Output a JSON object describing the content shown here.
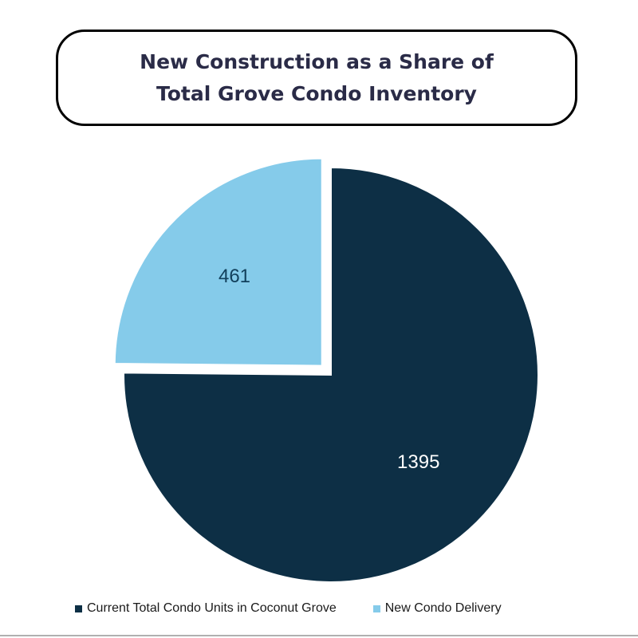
{
  "title_lines": [
    "New Construction as a Share of",
    "Total Grove Condo Inventory"
  ],
  "chart_data": {
    "type": "pie",
    "title": "New Construction as a Share of Total Grove Condo Inventory",
    "slices": [
      {
        "label": "Current Total Condo Units in Coconut Grove",
        "value": 1395,
        "color": "#0d2f45",
        "label_color": "#ffffff"
      },
      {
        "label": "New Condo Delivery",
        "value": 461,
        "color": "#85cbea",
        "label_color": "#12405c",
        "exploded": true
      }
    ],
    "legend_position": "bottom"
  }
}
